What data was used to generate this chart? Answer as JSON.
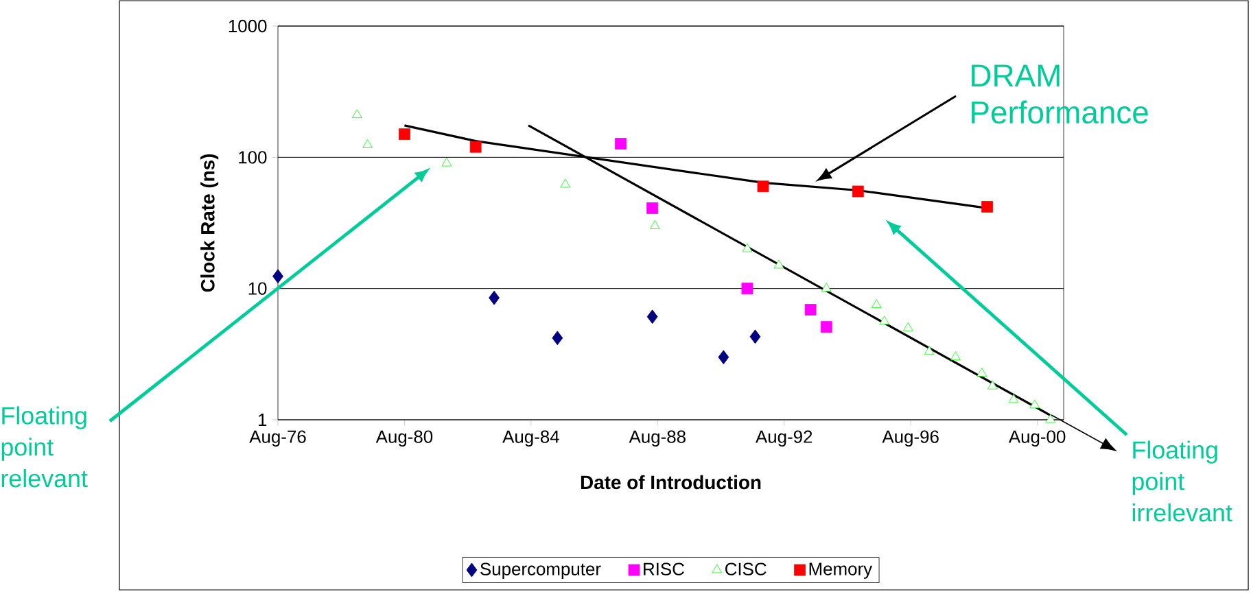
{
  "chart_data": {
    "type": "scatter",
    "xlabel": "Date of Introduction",
    "ylabel": "Clock Rate (ns)",
    "log": true,
    "grid": "y",
    "legend": "bottom",
    "xlim": [
      "1976-08",
      "2001-06"
    ],
    "ylim": [
      1,
      1000
    ],
    "xticks": [
      {
        "value": "1976-08",
        "label": "Aug-76"
      },
      {
        "value": "1980-08",
        "label": "Aug-80"
      },
      {
        "value": "1984-08",
        "label": "Aug-84"
      },
      {
        "value": "1988-08",
        "label": "Aug-88"
      },
      {
        "value": "1992-08",
        "label": "Aug-92"
      },
      {
        "value": "1996-08",
        "label": "Aug-96"
      },
      {
        "value": "2000-08",
        "label": "Aug-00"
      }
    ],
    "yticks": [
      1,
      10,
      100,
      1000
    ],
    "annotations": [
      "DRAM Performance",
      "Floating point relevant",
      "Floating point irrelevant"
    ],
    "series": [
      {
        "name": "Supercomputer",
        "color": "#000080",
        "marker": "diamond",
        "x": [
          "1976-08",
          "1983-06",
          "1985-06",
          "1988-06",
          "1990-09",
          "1991-09"
        ],
        "values": [
          12.4,
          8.5,
          4.2,
          6.1,
          3.0,
          4.3
        ]
      },
      {
        "name": "RISC",
        "color": "#ff00ff",
        "marker": "square",
        "x": [
          "1987-06",
          "1988-06",
          "1991-06",
          "1993-06",
          "1993-12"
        ],
        "values": [
          127,
          41,
          10,
          6.9,
          5.1
        ]
      },
      {
        "name": "CISC",
        "color": "#00ff00",
        "marker": "triangle",
        "x": [
          "1979-02",
          "1979-06",
          "1981-12",
          "1985-09",
          "1988-07",
          "1991-06",
          "1992-06",
          "1993-12",
          "1995-07",
          "1995-10",
          "1996-07",
          "1997-03",
          "1998-01",
          "1998-11",
          "1999-03",
          "1999-11",
          "2000-07",
          "2001-01"
        ],
        "values": [
          210,
          124,
          90,
          62,
          30,
          20,
          15,
          10,
          7.5,
          5.6,
          5.0,
          3.3,
          3.0,
          2.25,
          1.8,
          1.42,
          1.29,
          1.0
        ]
      },
      {
        "name": "Memory",
        "color": "#ff0000",
        "marker": "square",
        "x": [
          "1980-08",
          "1982-11",
          "1991-12",
          "1994-12",
          "1999-01"
        ],
        "values": [
          150,
          120,
          60,
          55,
          42
        ]
      },
      {
        "type": "line",
        "color": "#000000",
        "marker": "none",
        "line_style": "solid",
        "x": [
          "1980-08",
          "1982-11",
          "1991-12",
          "1994-12",
          "1999-01"
        ],
        "values": [
          175,
          133,
          64,
          56,
          41
        ]
      },
      {
        "type": "line",
        "color": "#000000",
        "marker": "none",
        "line_style": "solid",
        "x": [
          "1984-07",
          "2001-01"
        ],
        "values": [
          175,
          1.08
        ]
      }
    ]
  }
}
